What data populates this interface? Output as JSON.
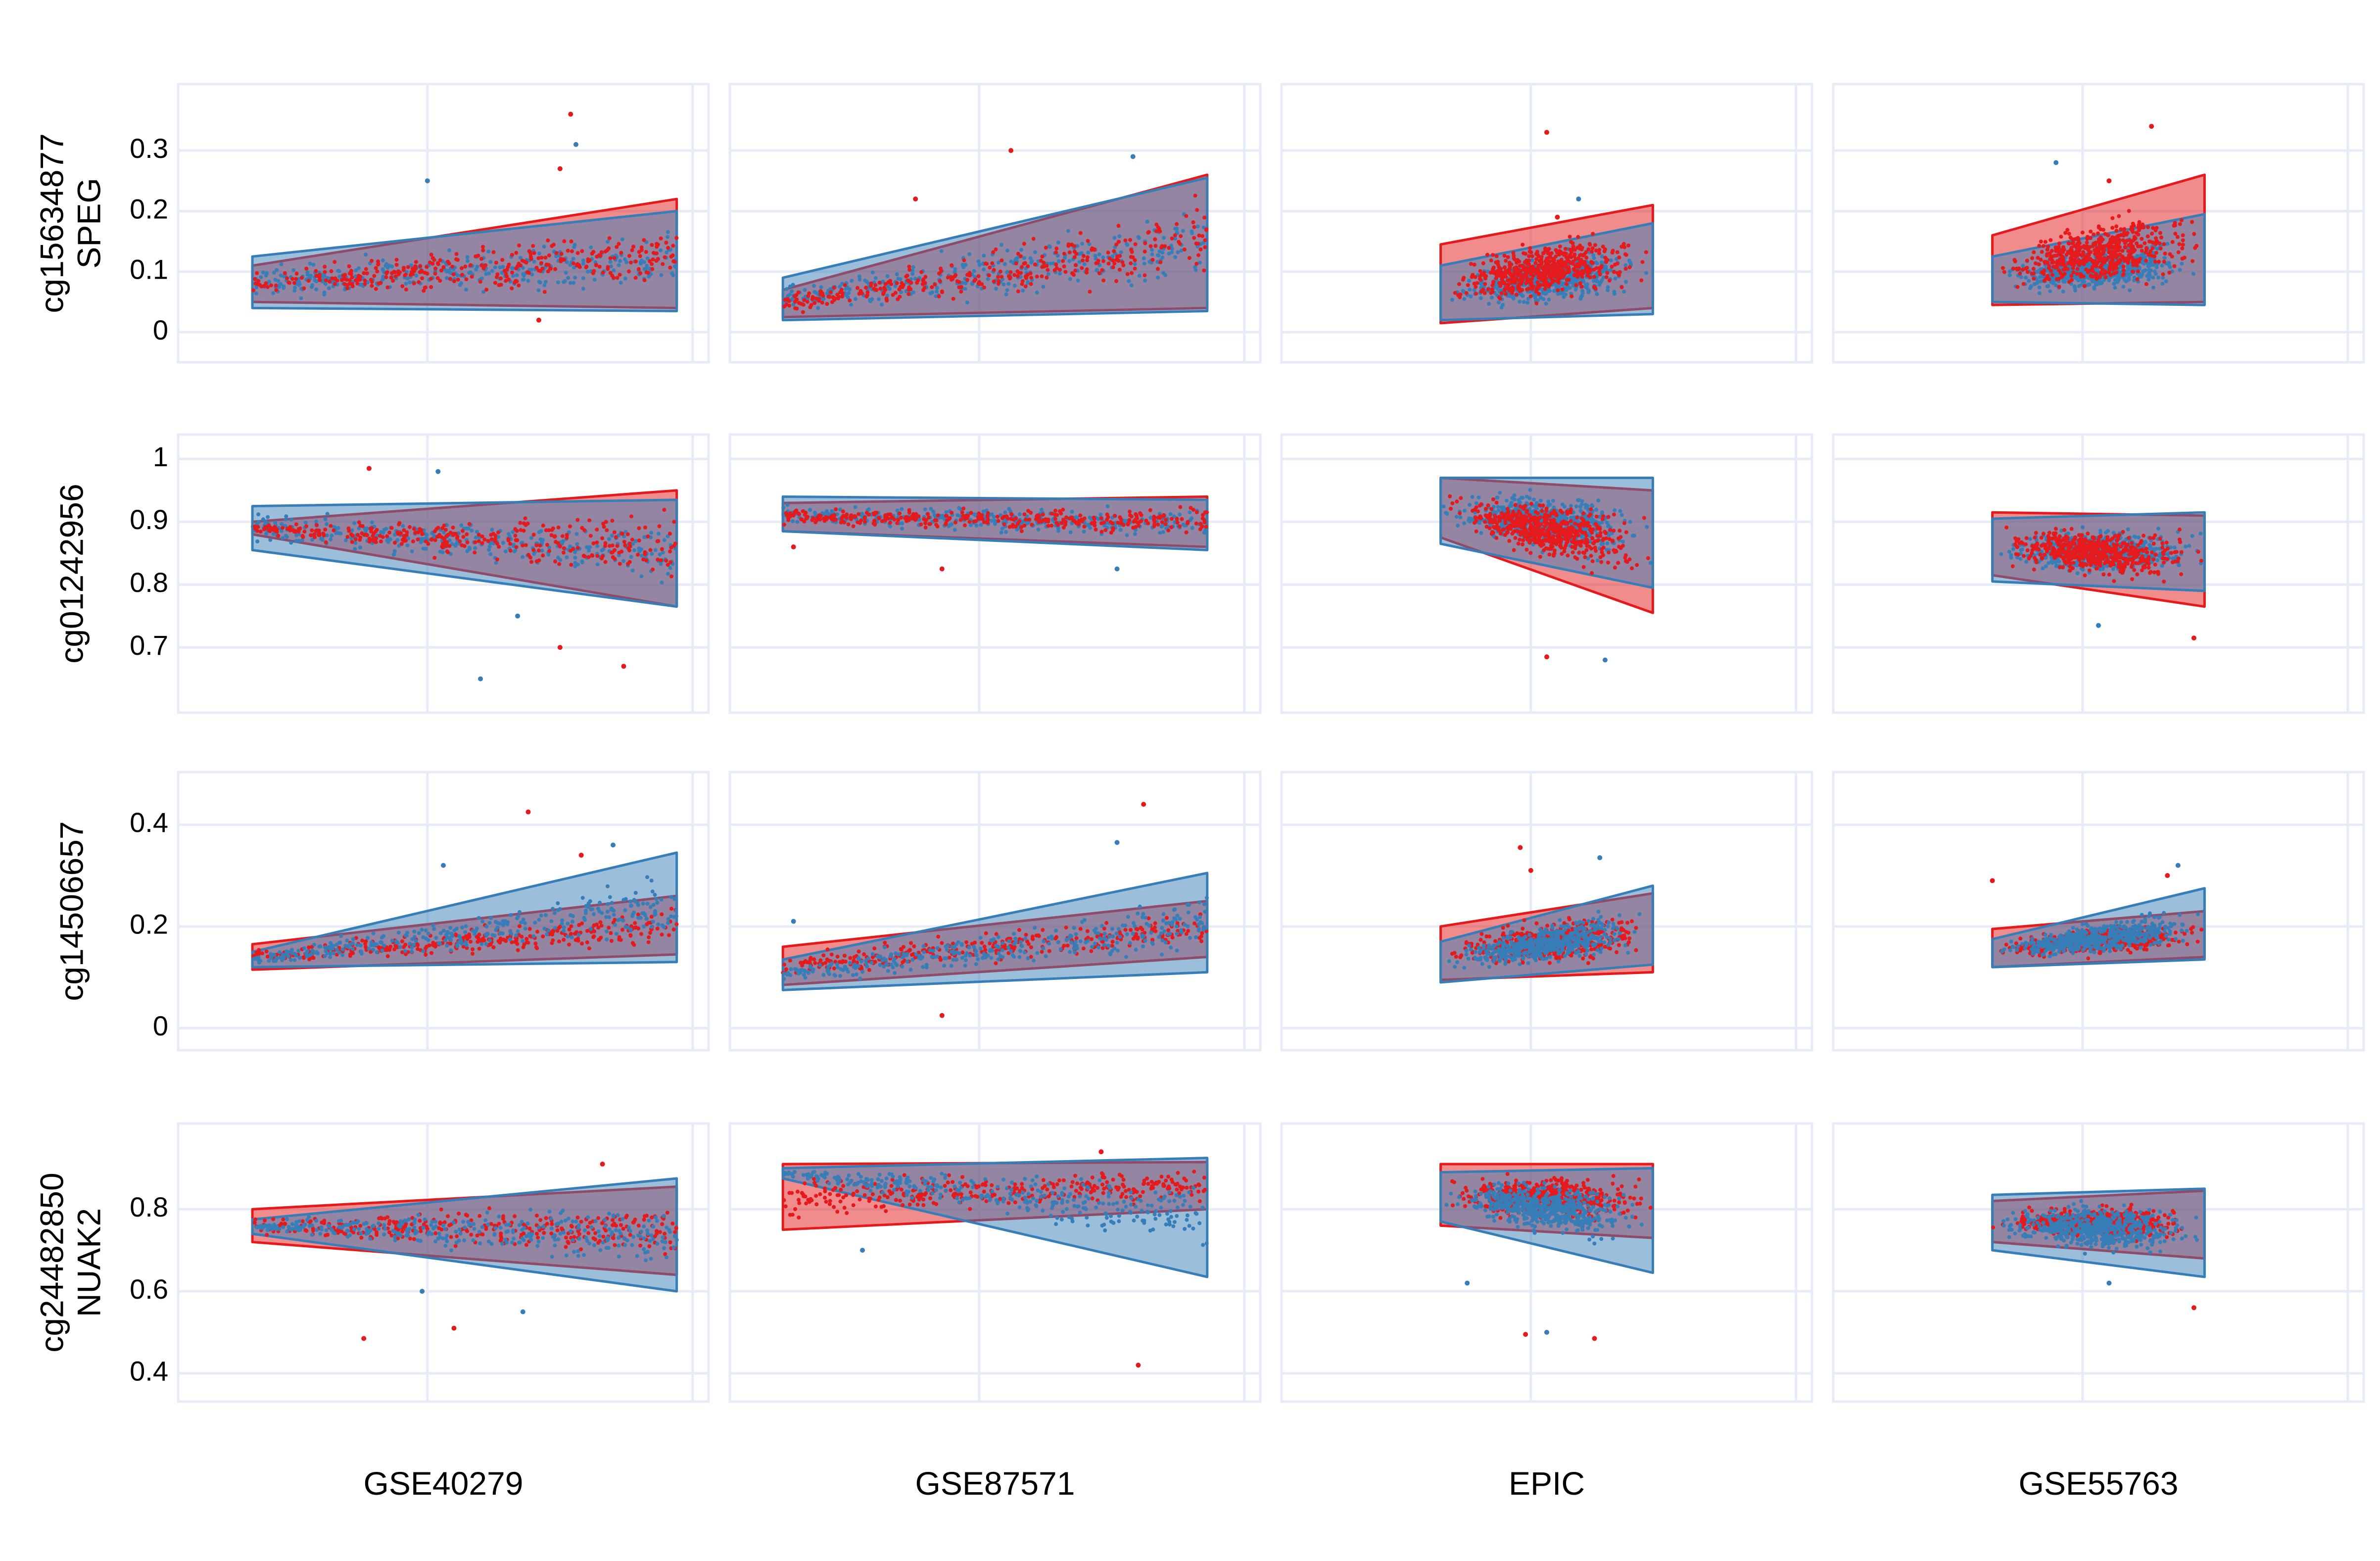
{
  "chart_data": {
    "type": "scatter",
    "layout": "faceted grid, 4 rows x 4 columns",
    "grid": true,
    "legend": "none",
    "colors": {
      "series_a": "#e41a1c",
      "series_b": "#377eb8",
      "panel_border": "#e6ecf5"
    },
    "columns": [
      "GSE40279",
      "GSE87571",
      "EPIC",
      "GSE55763"
    ],
    "rows": [
      {
        "label_lines": [
          "cg15634877",
          "SPEG"
        ],
        "ylim": [
          -0.03,
          0.39
        ],
        "yticks": [
          0,
          0.1,
          0.2,
          0.3
        ],
        "ytick_labels": [
          "0",
          "0.1",
          "0.2",
          "0.3"
        ],
        "panels": [
          {
            "column": "GSE40279",
            "x_range": [
              0.14,
              0.94
            ],
            "red_band": {
              "lower": [
                0.05,
                0.04
              ],
              "upper": [
                0.11,
                0.22
              ]
            },
            "blue_band": {
              "lower": [
                0.04,
                0.035
              ],
              "upper": [
                0.125,
                0.2
              ]
            },
            "outliers": [
              [
                0.74,
                0.36
              ],
              [
                0.75,
                0.31
              ],
              [
                0.72,
                0.27
              ],
              [
                0.47,
                0.25
              ],
              [
                0.68,
                0.02
              ]
            ]
          },
          {
            "column": "GSE87571",
            "x_range": [
              0.1,
              0.9
            ],
            "red_band": {
              "lower": [
                0.025,
                0.04
              ],
              "upper": [
                0.07,
                0.26
              ]
            },
            "blue_band": {
              "lower": [
                0.02,
                0.035
              ],
              "upper": [
                0.09,
                0.255
              ]
            },
            "outliers": [
              [
                0.53,
                0.3
              ],
              [
                0.76,
                0.29
              ],
              [
                0.35,
                0.22
              ]
            ]
          },
          {
            "column": "EPIC",
            "x_range": [
              0.3,
              0.7
            ],
            "red_band": {
              "lower": [
                0.015,
                0.04
              ],
              "upper": [
                0.145,
                0.21
              ]
            },
            "blue_band": {
              "lower": [
                0.02,
                0.03
              ],
              "upper": [
                0.11,
                0.18
              ]
            },
            "outliers": [
              [
                0.5,
                0.33
              ],
              [
                0.56,
                0.22
              ],
              [
                0.52,
                0.19
              ]
            ]
          },
          {
            "column": "GSE55763",
            "x_range": [
              0.3,
              0.7
            ],
            "red_band": {
              "lower": [
                0.045,
                0.05
              ],
              "upper": [
                0.16,
                0.26
              ]
            },
            "blue_band": {
              "lower": [
                0.05,
                0.045
              ],
              "upper": [
                0.125,
                0.195
              ]
            },
            "outliers": [
              [
                0.6,
                0.34
              ],
              [
                0.42,
                0.28
              ],
              [
                0.52,
                0.25
              ]
            ]
          }
        ]
      },
      {
        "label_lines": [
          "cg01242956"
        ],
        "ylim": [
          0.615,
          1.02
        ],
        "yticks": [
          0.7,
          0.8,
          0.9,
          1
        ],
        "ytick_labels": [
          "0.7",
          "0.8",
          "0.9",
          "1"
        ],
        "panels": [
          {
            "column": "GSE40279",
            "x_range": [
              0.14,
              0.94
            ],
            "red_band": {
              "lower": [
                0.88,
                0.765
              ],
              "upper": [
                0.9,
                0.95
              ]
            },
            "blue_band": {
              "lower": [
                0.855,
                0.765
              ],
              "upper": [
                0.925,
                0.935
              ]
            },
            "outliers": [
              [
                0.36,
                0.985
              ],
              [
                0.49,
                0.98
              ],
              [
                0.72,
                0.7
              ],
              [
                0.57,
                0.65
              ],
              [
                0.84,
                0.67
              ],
              [
                0.64,
                0.75
              ]
            ]
          },
          {
            "column": "GSE87571",
            "x_range": [
              0.1,
              0.9
            ],
            "red_band": {
              "lower": [
                0.885,
                0.86
              ],
              "upper": [
                0.93,
                0.94
              ]
            },
            "blue_band": {
              "lower": [
                0.885,
                0.855
              ],
              "upper": [
                0.94,
                0.935
              ]
            },
            "outliers": [
              [
                0.4,
                0.825
              ],
              [
                0.73,
                0.825
              ],
              [
                0.12,
                0.86
              ]
            ]
          },
          {
            "column": "EPIC",
            "x_range": [
              0.3,
              0.7
            ],
            "red_band": {
              "lower": [
                0.875,
                0.755
              ],
              "upper": [
                0.97,
                0.95
              ]
            },
            "blue_band": {
              "lower": [
                0.865,
                0.795
              ],
              "upper": [
                0.97,
                0.97
              ]
            },
            "outliers": [
              [
                0.5,
                0.685
              ],
              [
                0.61,
                0.68
              ]
            ]
          },
          {
            "column": "GSE55763",
            "x_range": [
              0.3,
              0.7
            ],
            "red_band": {
              "lower": [
                0.815,
                0.765
              ],
              "upper": [
                0.915,
                0.91
              ]
            },
            "blue_band": {
              "lower": [
                0.805,
                0.79
              ],
              "upper": [
                0.905,
                0.915
              ]
            },
            "outliers": [
              [
                0.68,
                0.715
              ],
              [
                0.5,
                0.735
              ]
            ]
          }
        ]
      },
      {
        "label_lines": [
          "cg14506657"
        ],
        "ylim": [
          -0.02,
          0.48
        ],
        "yticks": [
          0,
          0.2,
          0.4
        ],
        "ytick_labels": [
          "0",
          "0.2",
          "0.4"
        ],
        "panels": [
          {
            "column": "GSE40279",
            "x_range": [
              0.14,
              0.94
            ],
            "red_band": {
              "lower": [
                0.115,
                0.145
              ],
              "upper": [
                0.165,
                0.26
              ]
            },
            "blue_band": {
              "lower": [
                0.12,
                0.13
              ],
              "upper": [
                0.15,
                0.345
              ]
            },
            "outliers": [
              [
                0.66,
                0.425
              ],
              [
                0.82,
                0.36
              ],
              [
                0.76,
                0.34
              ],
              [
                0.5,
                0.32
              ]
            ]
          },
          {
            "column": "GSE87571",
            "x_range": [
              0.1,
              0.9
            ],
            "red_band": {
              "lower": [
                0.085,
                0.14
              ],
              "upper": [
                0.16,
                0.25
              ]
            },
            "blue_band": {
              "lower": [
                0.075,
                0.11
              ],
              "upper": [
                0.135,
                0.305
              ]
            },
            "outliers": [
              [
                0.78,
                0.44
              ],
              [
                0.73,
                0.365
              ],
              [
                0.4,
                0.025
              ],
              [
                0.12,
                0.21
              ]
            ]
          },
          {
            "column": "EPIC",
            "x_range": [
              0.3,
              0.7
            ],
            "red_band": {
              "lower": [
                0.095,
                0.11
              ],
              "upper": [
                0.2,
                0.265
              ]
            },
            "blue_band": {
              "lower": [
                0.09,
                0.125
              ],
              "upper": [
                0.17,
                0.28
              ]
            },
            "outliers": [
              [
                0.45,
                0.355
              ],
              [
                0.6,
                0.335
              ],
              [
                0.47,
                0.31
              ]
            ]
          },
          {
            "column": "GSE55763",
            "x_range": [
              0.3,
              0.7
            ],
            "red_band": {
              "lower": [
                0.12,
                0.14
              ],
              "upper": [
                0.195,
                0.23
              ]
            },
            "blue_band": {
              "lower": [
                0.12,
                0.135
              ],
              "upper": [
                0.175,
                0.275
              ]
            },
            "outliers": [
              [
                0.3,
                0.29
              ],
              [
                0.65,
                0.32
              ],
              [
                0.63,
                0.3
              ]
            ]
          }
        ]
      },
      {
        "label_lines": [
          "cg24482850",
          "NUAK2"
        ],
        "ylim": [
          0.36,
          0.98
        ],
        "yticks": [
          0.4,
          0.6,
          0.8
        ],
        "ytick_labels": [
          "0.4",
          "0.6",
          "0.8"
        ],
        "panels": [
          {
            "column": "GSE40279",
            "x_range": [
              0.14,
              0.94
            ],
            "red_band": {
              "lower": [
                0.72,
                0.64
              ],
              "upper": [
                0.8,
                0.855
              ]
            },
            "blue_band": {
              "lower": [
                0.74,
                0.6
              ],
              "upper": [
                0.775,
                0.875
              ]
            },
            "outliers": [
              [
                0.35,
                0.485
              ],
              [
                0.46,
                0.6
              ],
              [
                0.52,
                0.51
              ],
              [
                0.65,
                0.55
              ],
              [
                0.8,
                0.91
              ]
            ]
          },
          {
            "column": "GSE87571",
            "x_range": [
              0.1,
              0.9
            ],
            "red_band": {
              "lower": [
                0.75,
                0.8
              ],
              "upper": [
                0.91,
                0.915
              ]
            },
            "blue_band": {
              "lower": [
                0.875,
                0.635
              ],
              "upper": [
                0.9,
                0.925
              ]
            },
            "outliers": [
              [
                0.77,
                0.42
              ],
              [
                0.25,
                0.7
              ],
              [
                0.7,
                0.94
              ]
            ]
          },
          {
            "column": "EPIC",
            "x_range": [
              0.3,
              0.7
            ],
            "red_band": {
              "lower": [
                0.76,
                0.73
              ],
              "upper": [
                0.91,
                0.91
              ]
            },
            "blue_band": {
              "lower": [
                0.77,
                0.645
              ],
              "upper": [
                0.89,
                0.9
              ]
            },
            "outliers": [
              [
                0.46,
                0.495
              ],
              [
                0.5,
                0.5
              ],
              [
                0.59,
                0.485
              ],
              [
                0.35,
                0.62
              ]
            ]
          },
          {
            "column": "GSE55763",
            "x_range": [
              0.3,
              0.7
            ],
            "red_band": {
              "lower": [
                0.72,
                0.68
              ],
              "upper": [
                0.82,
                0.845
              ]
            },
            "blue_band": {
              "lower": [
                0.7,
                0.635
              ],
              "upper": [
                0.835,
                0.85
              ]
            },
            "outliers": [
              [
                0.68,
                0.56
              ],
              [
                0.52,
                0.62
              ]
            ]
          }
        ]
      }
    ]
  }
}
